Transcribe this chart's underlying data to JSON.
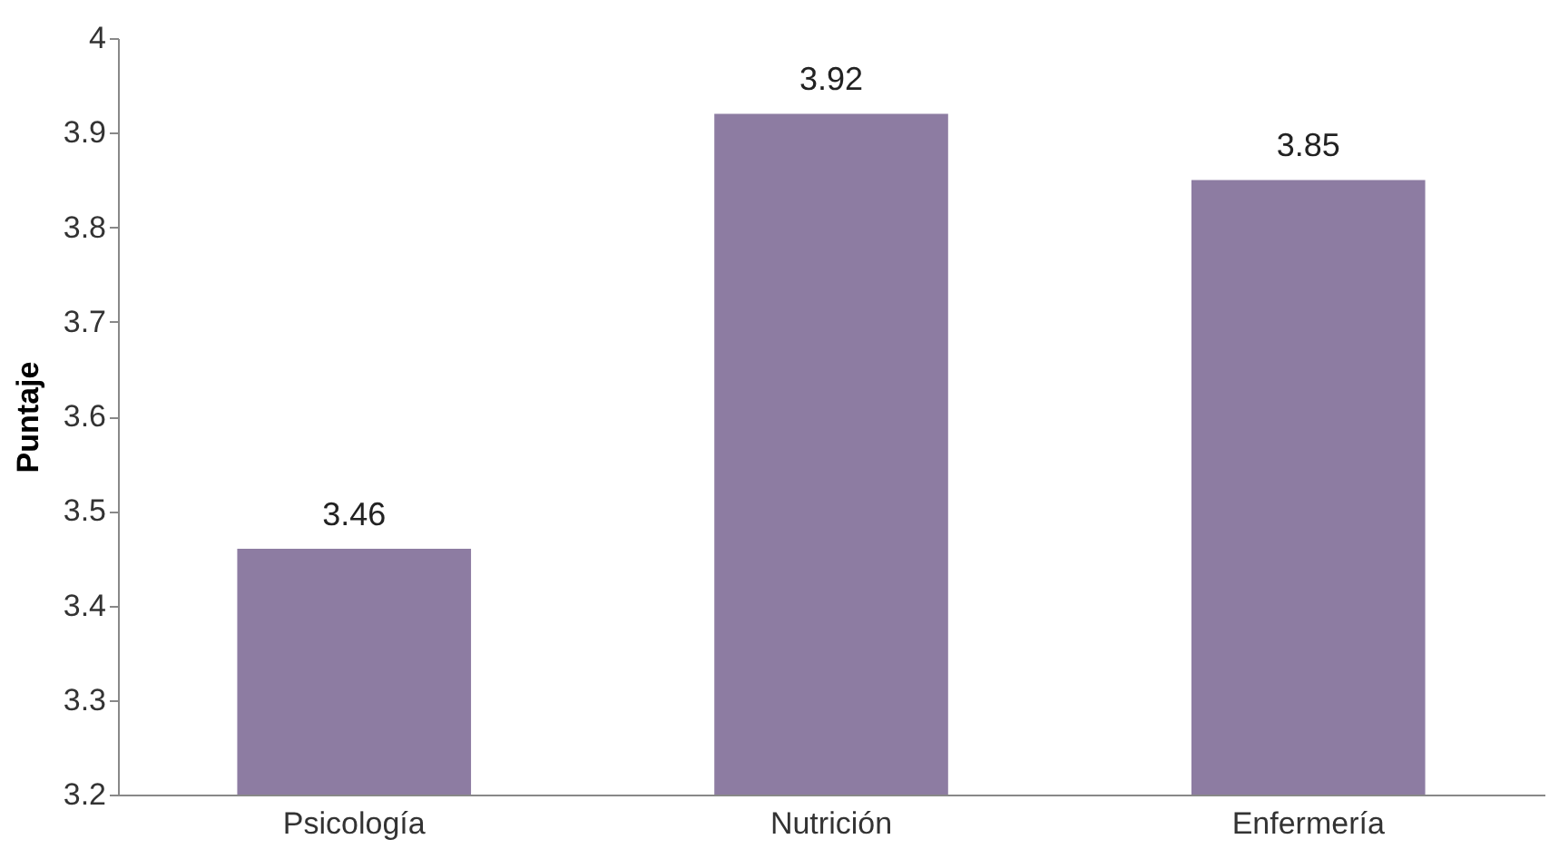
{
  "chart_data": {
    "type": "bar",
    "ylabel": "Puntaje",
    "categories": [
      "Psicología",
      "Nutrición",
      "Enfermería"
    ],
    "values": [
      3.46,
      3.92,
      3.85
    ],
    "color": "#8d7ca2",
    "ylim": [
      3.2,
      4
    ],
    "yticks": [
      3.2,
      3.3,
      3.4,
      3.5,
      3.6,
      3.7,
      3.8,
      3.9,
      4
    ],
    "grid": false,
    "data_labels": true
  }
}
